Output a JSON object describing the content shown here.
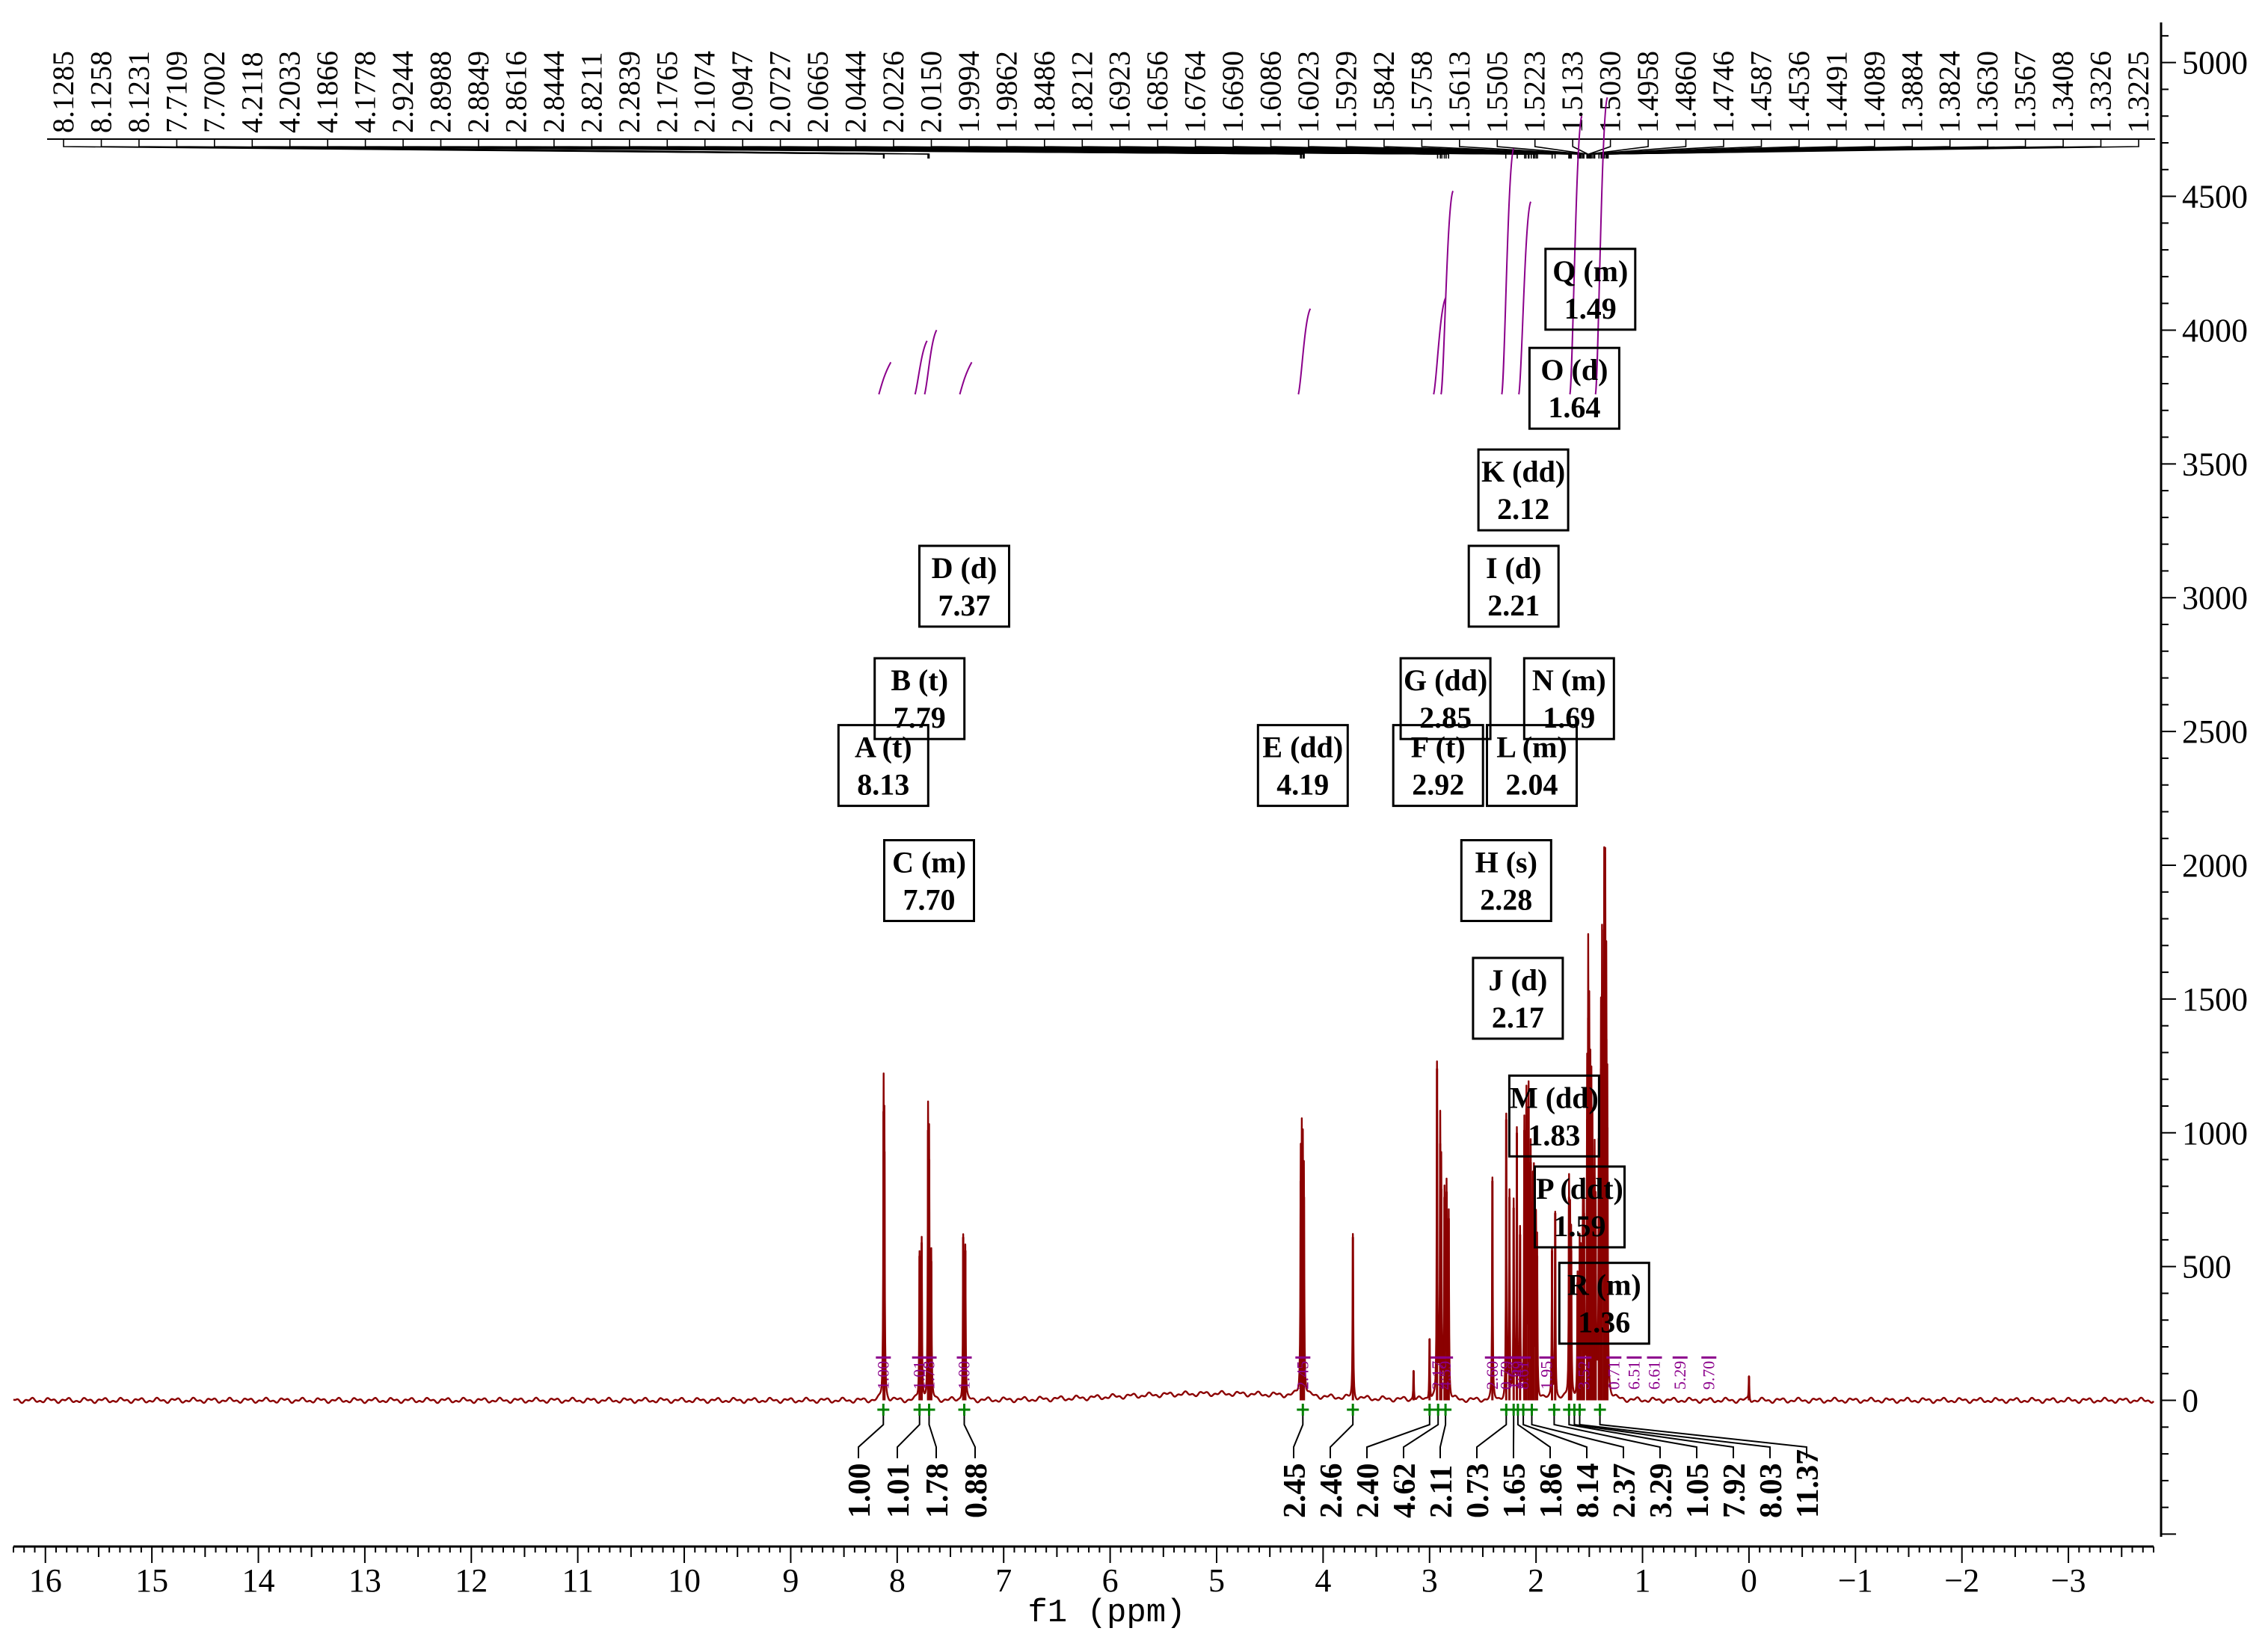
{
  "chart_data": {
    "type": "line",
    "title": "",
    "xlabel": "f1 (ppm)",
    "ylabel": "",
    "xlim": [
      16.3,
      -3.8
    ],
    "ylim": [
      -510,
      5150
    ],
    "x_ticks": [
      16,
      15,
      14,
      13,
      12,
      11,
      10,
      9,
      8,
      7,
      6,
      5,
      4,
      3,
      2,
      1,
      0,
      -1,
      -2,
      -3
    ],
    "x_tick_labels": [
      "16",
      "15",
      "14",
      "13",
      "12",
      "11",
      "10",
      "9",
      "8",
      "7",
      "6",
      "5",
      "4",
      "3",
      "2",
      "1",
      "0",
      "−1",
      "−2",
      "−3"
    ],
    "y_ticks": [
      0,
      500,
      1000,
      1500,
      2000,
      2500,
      3000,
      3500,
      4000,
      4500,
      5000
    ],
    "y_tick_labels": [
      "0",
      "500",
      "1000",
      "1500",
      "2000",
      "2500",
      "3000",
      "3500",
      "4000",
      "4500",
      "5000"
    ],
    "peak_labels": [
      "8.1285",
      "8.1258",
      "8.1231",
      "7.7109",
      "7.7002",
      "4.2118",
      "4.2033",
      "4.1866",
      "4.1778",
      "2.9244",
      "2.8988",
      "2.8849",
      "2.8616",
      "2.8444",
      "2.8211",
      "2.2839",
      "2.1765",
      "2.1074",
      "2.0947",
      "2.0727",
      "2.0665",
      "2.0444",
      "2.0226",
      "2.0150",
      "1.9994",
      "1.9862",
      "1.8486",
      "1.8212",
      "1.6923",
      "1.6856",
      "1.6764",
      "1.6690",
      "1.6086",
      "1.6023",
      "1.5929",
      "1.5842",
      "1.5758",
      "1.5613",
      "1.5505",
      "1.5223",
      "1.5133",
      "1.5030",
      "1.4958",
      "1.4860",
      "1.4746",
      "1.4587",
      "1.4536",
      "1.4491",
      "1.4089",
      "1.3884",
      "1.3824",
      "1.3630",
      "1.3567",
      "1.3408",
      "1.3326",
      "1.3225"
    ],
    "peaks": [
      {
        "x": 8.128,
        "y": 1080
      },
      {
        "x": 8.12,
        "y": 930
      },
      {
        "x": 7.79,
        "y": 540
      },
      {
        "x": 7.77,
        "y": 590
      },
      {
        "x": 7.71,
        "y": 1010
      },
      {
        "x": 7.7,
        "y": 900
      },
      {
        "x": 7.68,
        "y": 520
      },
      {
        "x": 7.38,
        "y": 610
      },
      {
        "x": 7.36,
        "y": 560
      },
      {
        "x": 4.21,
        "y": 820
      },
      {
        "x": 4.2,
        "y": 840
      },
      {
        "x": 4.19,
        "y": 800
      },
      {
        "x": 4.18,
        "y": 760
      },
      {
        "x": 3.72,
        "y": 610
      },
      {
        "x": 3.15,
        "y": 110
      },
      {
        "x": 3.0,
        "y": 230
      },
      {
        "x": 2.93,
        "y": 1240
      },
      {
        "x": 2.9,
        "y": 960
      },
      {
        "x": 2.89,
        "y": 790
      },
      {
        "x": 2.86,
        "y": 760
      },
      {
        "x": 2.84,
        "y": 780
      },
      {
        "x": 2.82,
        "y": 680
      },
      {
        "x": 2.41,
        "y": 820
      },
      {
        "x": 2.28,
        "y": 1050
      },
      {
        "x": 2.25,
        "y": 760
      },
      {
        "x": 2.21,
        "y": 720
      },
      {
        "x": 2.18,
        "y": 1000
      },
      {
        "x": 2.15,
        "y": 620
      },
      {
        "x": 2.11,
        "y": 1010
      },
      {
        "x": 2.09,
        "y": 1090
      },
      {
        "x": 2.07,
        "y": 1100
      },
      {
        "x": 2.05,
        "y": 890
      },
      {
        "x": 2.03,
        "y": 720
      },
      {
        "x": 2.02,
        "y": 760
      },
      {
        "x": 2.0,
        "y": 610
      },
      {
        "x": 1.99,
        "y": 540
      },
      {
        "x": 1.85,
        "y": 560
      },
      {
        "x": 1.82,
        "y": 700
      },
      {
        "x": 1.69,
        "y": 760
      },
      {
        "x": 1.68,
        "y": 600
      },
      {
        "x": 1.67,
        "y": 560
      },
      {
        "x": 1.61,
        "y": 440
      },
      {
        "x": 1.59,
        "y": 520
      },
      {
        "x": 1.58,
        "y": 470
      },
      {
        "x": 1.56,
        "y": 650
      },
      {
        "x": 1.55,
        "y": 700
      },
      {
        "x": 1.52,
        "y": 1050
      },
      {
        "x": 1.51,
        "y": 1430
      },
      {
        "x": 1.5,
        "y": 1180
      },
      {
        "x": 1.49,
        "y": 980
      },
      {
        "x": 1.48,
        "y": 960
      },
      {
        "x": 1.47,
        "y": 880
      },
      {
        "x": 1.45,
        "y": 820
      },
      {
        "x": 1.44,
        "y": 620
      },
      {
        "x": 1.41,
        "y": 980
      },
      {
        "x": 1.39,
        "y": 1240
      },
      {
        "x": 1.38,
        "y": 1520
      },
      {
        "x": 1.36,
        "y": 1760
      },
      {
        "x": 1.35,
        "y": 1660
      },
      {
        "x": 1.34,
        "y": 1350
      },
      {
        "x": 1.33,
        "y": 1020
      },
      {
        "x": 0.0,
        "y": 90
      }
    ],
    "baseline": 0,
    "integrals": [
      {
        "x": 8.13,
        "value": "1.00"
      },
      {
        "x": 7.79,
        "value": "1.01"
      },
      {
        "x": 7.7,
        "value": "1.78"
      },
      {
        "x": 7.37,
        "value": "0.88"
      },
      {
        "x": 4.19,
        "value": "2.45"
      },
      {
        "x": 3.72,
        "value": "2.46"
      },
      {
        "x": 3.0,
        "value": "2.40"
      },
      {
        "x": 2.92,
        "value": "4.62"
      },
      {
        "x": 2.85,
        "value": "2.11"
      },
      {
        "x": 2.28,
        "value": "0.73"
      },
      {
        "x": 2.21,
        "value": "1.65"
      },
      {
        "x": 2.17,
        "value": "1.86"
      },
      {
        "x": 2.12,
        "value": "8.14"
      },
      {
        "x": 2.04,
        "value": "2.37"
      },
      {
        "x": 1.83,
        "value": "3.29"
      },
      {
        "x": 1.69,
        "value": "1.05"
      },
      {
        "x": 1.64,
        "value": "7.92"
      },
      {
        "x": 1.59,
        "value": "8.03"
      },
      {
        "x": 1.4,
        "value": "11.37"
      }
    ],
    "multiplet_integrals": [
      "1.00",
      "1.01",
      "1.78",
      "1.00",
      "2.45",
      "2.17",
      "4.59",
      "2.60",
      "0.79",
      "1.63",
      "1.49",
      "8.61",
      "1.95",
      "3.52",
      "0.71",
      "6.51",
      "6.61",
      "5.29",
      "9.70"
    ],
    "multiplets": [
      {
        "name": "A (t)",
        "shift": "8.13",
        "x": 8.13,
        "y": 2370
      },
      {
        "name": "B (t)",
        "shift": "7.79",
        "x": 7.79,
        "y": 2620
      },
      {
        "name": "C (m)",
        "shift": "7.70",
        "x": 7.7,
        "y": 1940
      },
      {
        "name": "D (d)",
        "shift": "7.37",
        "x": 7.37,
        "y": 3040
      },
      {
        "name": "E (dd)",
        "shift": "4.19",
        "x": 4.19,
        "y": 2370
      },
      {
        "name": "F (t)",
        "shift": "2.92",
        "x": 2.92,
        "y": 2370
      },
      {
        "name": "G (dd)",
        "shift": "2.85",
        "x": 2.85,
        "y": 2620
      },
      {
        "name": "H (s)",
        "shift": "2.28",
        "x": 2.28,
        "y": 1940
      },
      {
        "name": "I (d)",
        "shift": "2.21",
        "x": 2.21,
        "y": 3040
      },
      {
        "name": "J (d)",
        "shift": "2.17",
        "x": 2.17,
        "y": 1500
      },
      {
        "name": "K (dd)",
        "shift": "2.12",
        "x": 2.12,
        "y": 3400
      },
      {
        "name": "L (m)",
        "shift": "2.04",
        "x": 2.04,
        "y": 2370
      },
      {
        "name": "M (dd)",
        "shift": "1.83",
        "x": 1.83,
        "y": 1060
      },
      {
        "name": "N (m)",
        "shift": "1.69",
        "x": 1.69,
        "y": 2620
      },
      {
        "name": "O (d)",
        "shift": "1.64",
        "x": 1.64,
        "y": 3780
      },
      {
        "name": "P (ddt)",
        "shift": "1.59",
        "x": 1.59,
        "y": 720
      },
      {
        "name": "Q (m)",
        "shift": "1.49",
        "x": 1.49,
        "y": 4150
      },
      {
        "name": "R (m)",
        "shift": "1.36",
        "x": 1.36,
        "y": 360
      }
    ],
    "colors": {
      "spectrum": "#8b0000",
      "integral_curve": "#8b008b",
      "integral_bracket": "#008000",
      "axis": "#000000",
      "label_box": "#000000"
    }
  }
}
